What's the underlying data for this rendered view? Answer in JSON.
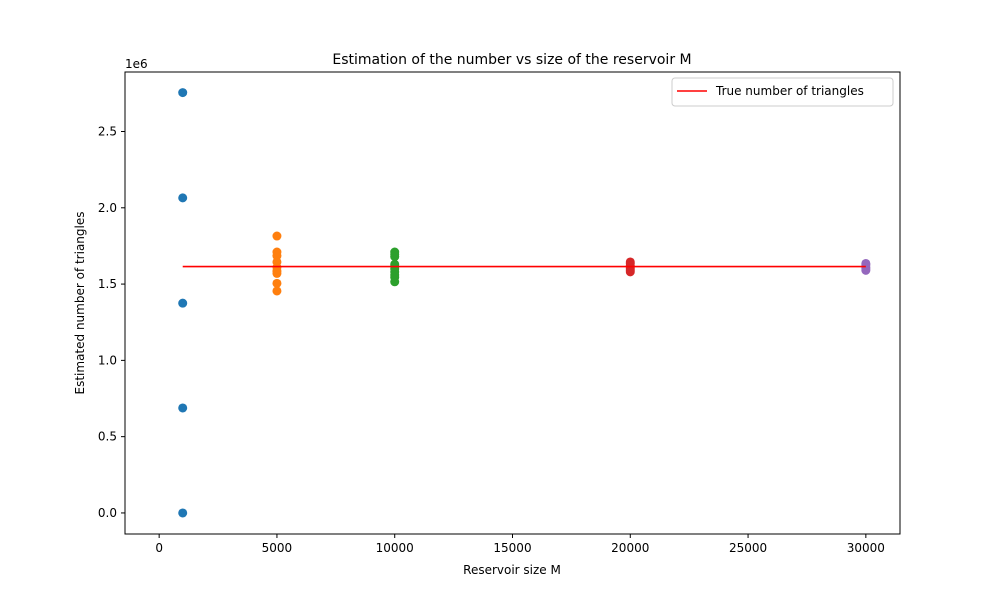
{
  "chart_data": {
    "type": "scatter",
    "title": "Estimation of the number vs size of the reservoir M",
    "xlabel": "Reservoir size M",
    "ylabel": "Estimated number of triangles",
    "y_offset_label": "1e6",
    "xlim": [
      -1450,
      31450
    ],
    "ylim": [
      -0.138,
      2.89
    ],
    "xticks": [
      0,
      5000,
      10000,
      15000,
      20000,
      25000,
      30000
    ],
    "xtick_labels": [
      "0",
      "5000",
      "10000",
      "15000",
      "20000",
      "25000",
      "30000"
    ],
    "yticks": [
      0.0,
      0.5,
      1.0,
      1.5,
      2.0,
      2.5
    ],
    "ytick_labels": [
      "0.0",
      "0.5",
      "1.0",
      "1.5",
      "2.0",
      "2.5"
    ],
    "grid": false,
    "legend_position": "top-right",
    "series": [
      {
        "x": 1000,
        "color": "#1f77b4",
        "values": [
          2.755,
          2.065,
          1.375,
          0.688,
          0.0
        ]
      },
      {
        "x": 5000,
        "color": "#ff7f0e",
        "values": [
          1.815,
          1.71,
          1.685,
          1.645,
          1.61,
          1.585,
          1.57,
          1.505,
          1.455
        ]
      },
      {
        "x": 10000,
        "color": "#2ca02c",
        "values": [
          1.71,
          1.695,
          1.68,
          1.63,
          1.615,
          1.6,
          1.58,
          1.56,
          1.545,
          1.515
        ]
      },
      {
        "x": 20000,
        "color": "#d62728",
        "values": [
          1.645,
          1.635,
          1.62,
          1.61,
          1.6,
          1.59,
          1.58
        ]
      },
      {
        "x": 30000,
        "color": "#9467bd",
        "values": [
          1.635,
          1.625,
          1.61,
          1.6,
          1.59
        ]
      }
    ],
    "reference_line": {
      "name": "True number of triangles",
      "value": 1.615,
      "x_range": [
        1000,
        30000
      ],
      "color": "#ff0000"
    }
  }
}
